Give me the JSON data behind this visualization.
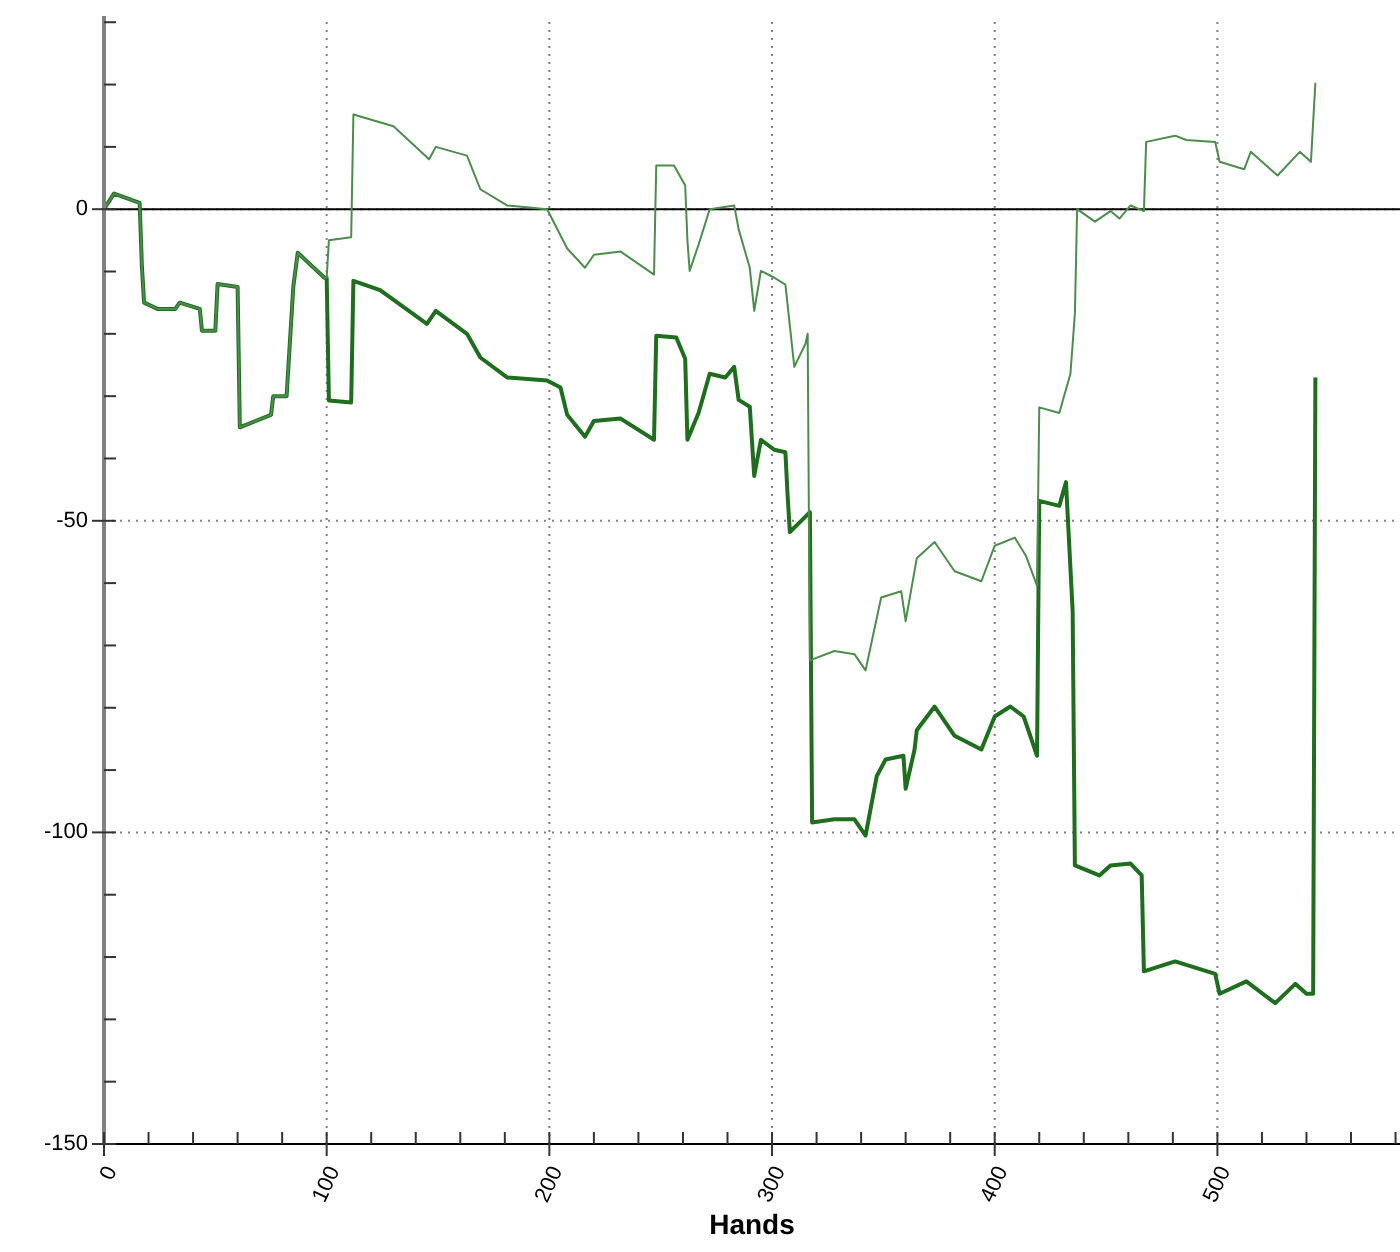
{
  "chart_data": {
    "type": "line",
    "xlabel": "Hands",
    "xlim": [
      0,
      582
    ],
    "ylim": [
      -150,
      31
    ],
    "xticks": [
      0,
      {
        "value": 20,
        "label": null
      },
      {
        "value": 40,
        "label": null
      },
      {
        "value": 60,
        "label": null
      },
      {
        "value": 80,
        "label": null
      },
      100,
      {
        "value": 120,
        "label": null
      },
      {
        "value": 140,
        "label": null
      },
      {
        "value": 160,
        "label": null
      },
      {
        "value": 180,
        "label": null
      },
      200,
      {
        "value": 220,
        "label": null
      },
      {
        "value": 240,
        "label": null
      },
      {
        "value": 260,
        "label": null
      },
      {
        "value": 280,
        "label": null
      },
      300,
      {
        "value": 320,
        "label": null
      },
      {
        "value": 340,
        "label": null
      },
      {
        "value": 360,
        "label": null
      },
      {
        "value": 380,
        "label": null
      },
      400,
      {
        "value": 420,
        "label": null
      },
      {
        "value": 440,
        "label": null
      },
      {
        "value": 460,
        "label": null
      },
      {
        "value": 480,
        "label": null
      },
      500,
      {
        "value": 520,
        "label": null
      },
      {
        "value": 540,
        "label": null
      },
      {
        "value": 560,
        "label": null
      },
      {
        "value": 580,
        "label": null
      }
    ],
    "yticks": [
      -150,
      {
        "value": -140,
        "label": null
      },
      {
        "value": -130,
        "label": null
      },
      {
        "value": -120,
        "label": null
      },
      {
        "value": -110,
        "label": null
      },
      -100,
      {
        "value": -90,
        "label": null
      },
      {
        "value": -80,
        "label": null
      },
      {
        "value": -70,
        "label": null
      },
      {
        "value": -60,
        "label": null
      },
      -50,
      {
        "value": -40,
        "label": null
      },
      {
        "value": -30,
        "label": null
      },
      {
        "value": -20,
        "label": null
      },
      {
        "value": -10,
        "label": null
      },
      0,
      {
        "value": 10,
        "label": null
      },
      {
        "value": 20,
        "label": null
      },
      {
        "value": 30,
        "label": null
      }
    ],
    "grid": true,
    "ref_lines": [
      {
        "axis": "y",
        "value": 0,
        "color": "#000000"
      }
    ],
    "series": [
      {
        "color": "#1e6e1e",
        "x": [
          0,
          4.5,
          16,
          17,
          18,
          24,
          32,
          34,
          43,
          44,
          50,
          51,
          60,
          61,
          75,
          76,
          82,
          85,
          87,
          99,
          100,
          101,
          111,
          112,
          124,
          145,
          149,
          163,
          169,
          181,
          199,
          205,
          208,
          216,
          220,
          232,
          247,
          248,
          257,
          261,
          262,
          267,
          272,
          279,
          283,
          285,
          290,
          292,
          295,
          301,
          306,
          307,
          308,
          314,
          317,
          318,
          328,
          337,
          342,
          347,
          351,
          359,
          360,
          364,
          365,
          373,
          382,
          394,
          400,
          407,
          413,
          419,
          420,
          429,
          432,
          435,
          436,
          447,
          452,
          461,
          466,
          467,
          481,
          499,
          501,
          513,
          526,
          535,
          540,
          543,
          544
        ],
        "values": [
          0,
          2.5,
          1,
          -9,
          -15,
          -16,
          -16,
          -15,
          -16,
          -19.5,
          -19.5,
          -12,
          -12.5,
          -35,
          -33,
          -30,
          -30,
          -12.5,
          -7,
          -11,
          -11,
          -30.7,
          -31,
          -11.5,
          -13,
          -18.4,
          -16.3,
          -20,
          -23.8,
          -27,
          -27.5,
          -28.6,
          -33,
          -36.5,
          -34,
          -33.6,
          -37,
          -20.3,
          -20.6,
          -24,
          -37,
          -32.7,
          -26.4,
          -27,
          -25.3,
          -30.6,
          -31.7,
          -42.8,
          -37,
          -38.6,
          -39,
          -46,
          -51.8,
          -49.7,
          -48.6,
          -98.4,
          -97.9,
          -97.9,
          -100.5,
          -91,
          -88.3,
          -87.7,
          -93,
          -86.7,
          -83.6,
          -79.8,
          -84.5,
          -86.7,
          -81.4,
          -79.8,
          -81.4,
          -87.7,
          -46.8,
          -47.6,
          -43.8,
          -64.5,
          -105.3,
          -106.9,
          -105.3,
          -105,
          -106.9,
          -122.3,
          -120.7,
          -122.7,
          -125.9,
          -123.9,
          -127.4,
          -124.3,
          -125.9,
          -125.9,
          -27
        ]
      },
      {
        "color": "#4c8c4c",
        "x": [
          0,
          4.5,
          16,
          17,
          18,
          24,
          32,
          34,
          43,
          44,
          50,
          51,
          60,
          61,
          75,
          76,
          82,
          85,
          87,
          99,
          100,
          101,
          111,
          112,
          130,
          146,
          149,
          163,
          169,
          181,
          199,
          208,
          216,
          220,
          232,
          247,
          248,
          256,
          261,
          262,
          263,
          267,
          272,
          283,
          285,
          290,
          292,
          295,
          301,
          306,
          310,
          315,
          316,
          317,
          328,
          337,
          342,
          349,
          358,
          360,
          365,
          373,
          382,
          394,
          400,
          409,
          414,
          419,
          420,
          429,
          434,
          436,
          437,
          445,
          452,
          456,
          461,
          467,
          468,
          481,
          486,
          499,
          501,
          512,
          515,
          527,
          537,
          542,
          544
        ],
        "values": [
          0,
          2.5,
          1,
          -9,
          -15,
          -16,
          -16,
          -15,
          -16,
          -19.5,
          -19.5,
          -12,
          -12.5,
          -35,
          -33,
          -30,
          -30,
          -12.5,
          -7,
          -11,
          -11,
          -5,
          -4.5,
          15.2,
          13.3,
          8,
          10,
          8.6,
          3.2,
          0.6,
          0,
          -6.3,
          -9.4,
          -7.3,
          -6.8,
          -10.5,
          7,
          7,
          3.8,
          -5,
          -9.9,
          -5.7,
          0,
          0.6,
          -3.2,
          -9.4,
          -16.3,
          -9.9,
          -11,
          -12.1,
          -25.3,
          -21.6,
          -20,
          -72.4,
          -70.9,
          -71.4,
          -74,
          -62.3,
          -61.3,
          -66.1,
          -56,
          -53.4,
          -58.1,
          -59.7,
          -54,
          -52.7,
          -55.6,
          -60.4,
          -31.8,
          -32.7,
          -26.4,
          -16.8,
          0,
          -2,
          -0.3,
          -1.5,
          0.6,
          -0.3,
          10.8,
          11.8,
          11.1,
          10.8,
          7.6,
          6.4,
          9.2,
          5.4,
          9.2,
          7.6,
          20.3
        ]
      }
    ]
  }
}
